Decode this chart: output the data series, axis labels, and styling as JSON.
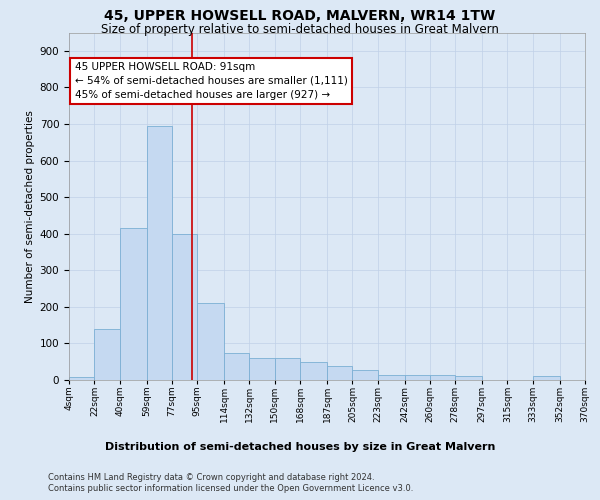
{
  "title": "45, UPPER HOWSELL ROAD, MALVERN, WR14 1TW",
  "subtitle": "Size of property relative to semi-detached houses in Great Malvern",
  "xlabel_dist": "Distribution of semi-detached houses by size in Great Malvern",
  "ylabel": "Number of semi-detached properties",
  "annotation_title": "45 UPPER HOWSELL ROAD: 91sqm",
  "annotation_line1": "← 54% of semi-detached houses are smaller (1,111)",
  "annotation_line2": "45% of semi-detached houses are larger (927) →",
  "footer1": "Contains HM Land Registry data © Crown copyright and database right 2024.",
  "footer2": "Contains public sector information licensed under the Open Government Licence v3.0.",
  "bin_edges": [
    4,
    22,
    40,
    59,
    77,
    95,
    114,
    132,
    150,
    168,
    187,
    205,
    223,
    242,
    260,
    278,
    297,
    315,
    333,
    352,
    370
  ],
  "bin_labels": [
    "4sqm",
    "22sqm",
    "40sqm",
    "59sqm",
    "77sqm",
    "95sqm",
    "114sqm",
    "132sqm",
    "150sqm",
    "168sqm",
    "187sqm",
    "205sqm",
    "223sqm",
    "242sqm",
    "260sqm",
    "278sqm",
    "297sqm",
    "315sqm",
    "333sqm",
    "352sqm",
    "370sqm"
  ],
  "bar_heights": [
    8,
    140,
    415,
    695,
    400,
    210,
    75,
    60,
    60,
    50,
    38,
    28,
    15,
    15,
    15,
    12,
    0,
    0,
    12,
    0,
    0
  ],
  "bar_color": "#c5d9f1",
  "bar_edge_color": "#7bafd4",
  "vline_color": "#cc0000",
  "vline_x": 91,
  "ylim": [
    0,
    950
  ],
  "yticks": [
    0,
    100,
    200,
    300,
    400,
    500,
    600,
    700,
    800,
    900
  ],
  "grid_color": "#c0d0e8",
  "annotation_box_facecolor": "#ffffff",
  "annotation_box_edgecolor": "#cc0000",
  "bg_color": "#dce8f5",
  "title_fontsize": 10,
  "subtitle_fontsize": 8.5,
  "ylabel_fontsize": 7.5,
  "xtick_fontsize": 6.5,
  "ytick_fontsize": 7.5,
  "footer_fontsize": 6,
  "xlabel_dist_fontsize": 8
}
